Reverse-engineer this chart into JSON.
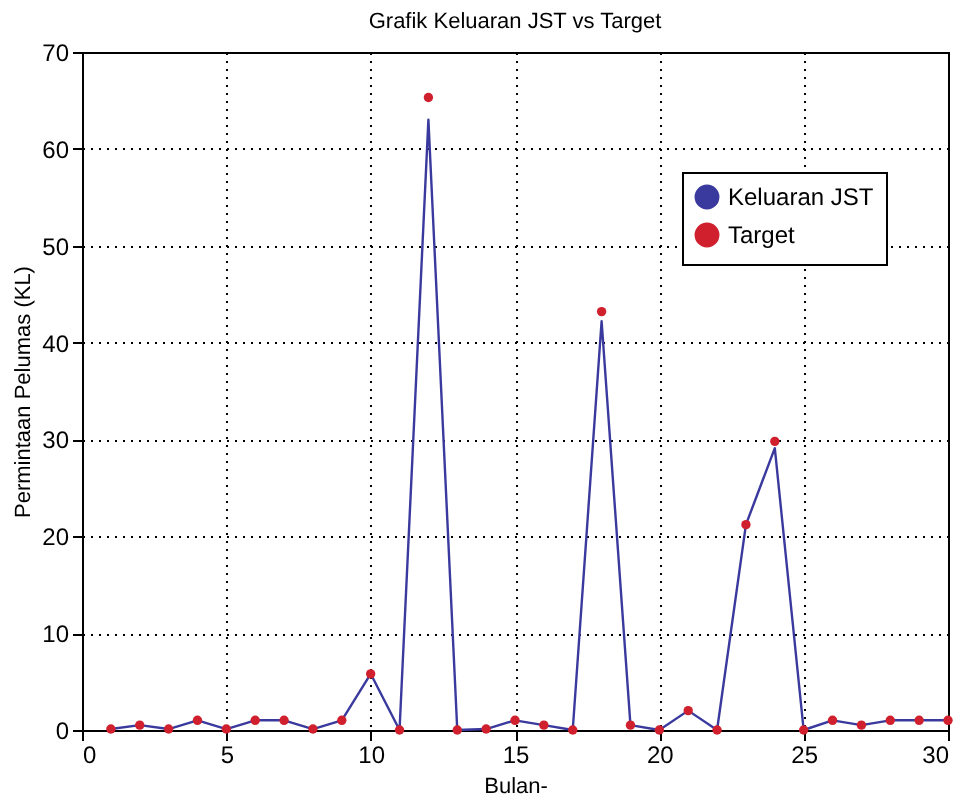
{
  "chart_data": {
    "type": "line",
    "title": "Grafik Keluaran JST vs Target",
    "xlabel": "Bulan-",
    "ylabel": "Permintaan Pelumas (KL)",
    "x": [
      1,
      2,
      3,
      4,
      5,
      6,
      7,
      8,
      9,
      10,
      11,
      12,
      13,
      14,
      15,
      16,
      17,
      18,
      19,
      20,
      21,
      22,
      23,
      24,
      25,
      26,
      27,
      28,
      29,
      30
    ],
    "series": [
      {
        "name": "Keluaran JST",
        "color": "#3a3a9e",
        "values": [
          0.1,
          0.5,
          0.1,
          1.0,
          0.1,
          1.0,
          1.0,
          0.1,
          1.0,
          5.8,
          0,
          63.0,
          0,
          0.1,
          1.0,
          0.5,
          0,
          42.2,
          0.5,
          0,
          2.0,
          0,
          21.2,
          29.1,
          0,
          1.0,
          0.5,
          1.0,
          1.0,
          1.0
        ]
      },
      {
        "name": "Target",
        "type": "scatter",
        "marker": "circle",
        "color": "#d0202e",
        "values": [
          0.1,
          0.5,
          0.1,
          1.0,
          0.1,
          1.0,
          1.0,
          0.1,
          1.0,
          5.8,
          0,
          65.3,
          0,
          0.1,
          1.0,
          0.5,
          0,
          43.2,
          0.5,
          0,
          2.0,
          0,
          21.2,
          29.8,
          0,
          1.0,
          0.5,
          1.0,
          1.0,
          1.0
        ]
      }
    ],
    "xlim": [
      0,
      30
    ],
    "xticks": [
      0,
      5,
      10,
      15,
      20,
      25,
      30
    ],
    "ylim": [
      0,
      70
    ],
    "yticks": [
      0,
      10,
      20,
      30,
      40,
      50,
      60,
      70
    ],
    "grid": true,
    "legend": "top right"
  }
}
